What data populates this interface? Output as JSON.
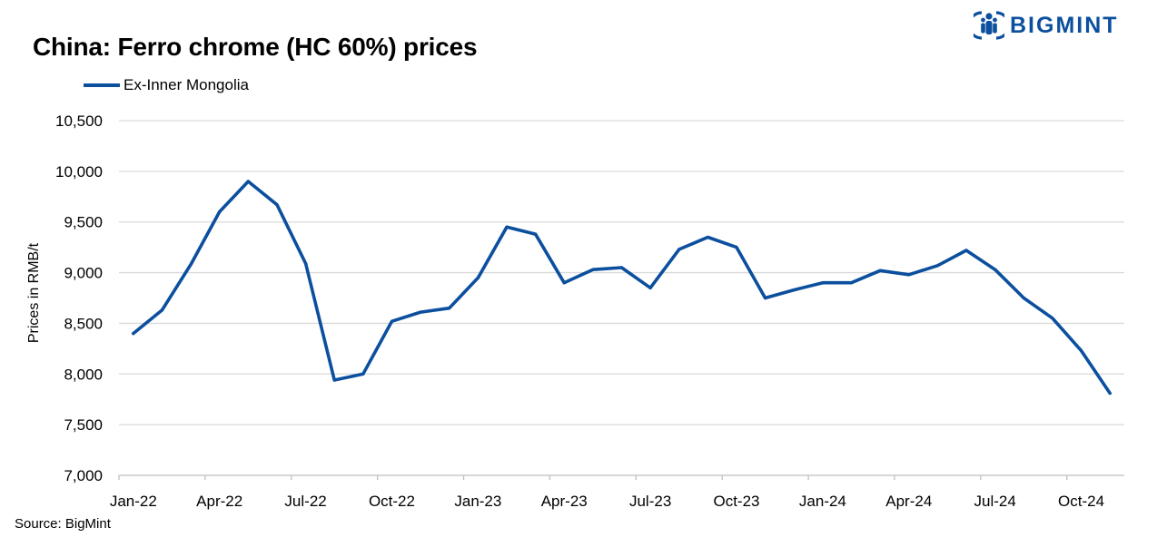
{
  "title": "China: Ferro chrome (HC 60%) prices",
  "logo": {
    "text": "BIGMINT",
    "icon": "bigmint-people-icon",
    "color": "#0b4f9e"
  },
  "legend": {
    "label": "Ex-Inner Mongolia",
    "position": "top-left"
  },
  "source": "Source: BigMint",
  "colors": {
    "line": "#0b4f9e",
    "grid": "#d9d9d9",
    "axis": "#bfbfbf"
  },
  "chart_data": {
    "type": "line",
    "ylabel": "Prices in RMB/t",
    "xlabel": "",
    "ylim": [
      7000,
      10500
    ],
    "yticks": [
      7000,
      7500,
      8000,
      8500,
      9000,
      9500,
      10000,
      10500
    ],
    "ytick_labels": [
      "7,000",
      "7,500",
      "8,000",
      "8,500",
      "9,000",
      "9,500",
      "10,000",
      "10,500"
    ],
    "grid": true,
    "x_tick_labels": [
      "Jan-22",
      "Apr-22",
      "Jul-22",
      "Oct-22",
      "Jan-23",
      "Apr-23",
      "Jul-23",
      "Oct-23",
      "Jan-24",
      "Apr-24",
      "Jul-24",
      "Oct-24"
    ],
    "x": [
      "Jan-22",
      "Feb-22",
      "Mar-22",
      "Apr-22",
      "May-22",
      "Jun-22",
      "Jul-22",
      "Aug-22",
      "Sep-22",
      "Oct-22",
      "Nov-22",
      "Dec-22",
      "Jan-23",
      "Feb-23",
      "Mar-23",
      "Apr-23",
      "May-23",
      "Jun-23",
      "Jul-23",
      "Aug-23",
      "Sep-23",
      "Oct-23",
      "Nov-23",
      "Dec-23",
      "Jan-24",
      "Feb-24",
      "Mar-24",
      "Apr-24",
      "May-24",
      "Jun-24",
      "Jul-24",
      "Aug-24",
      "Sep-24",
      "Oct-24",
      "Nov-24"
    ],
    "series": [
      {
        "name": "Ex-Inner Mongolia",
        "values": [
          8400,
          8630,
          9080,
          9600,
          9900,
          9670,
          9090,
          7940,
          8000,
          8520,
          8610,
          8650,
          8950,
          9450,
          9380,
          8900,
          9030,
          9050,
          8850,
          9230,
          9350,
          9250,
          8750,
          8830,
          8900,
          8900,
          9020,
          8980,
          9070,
          9220,
          9030,
          8750,
          8550,
          8230,
          7810
        ]
      }
    ]
  }
}
